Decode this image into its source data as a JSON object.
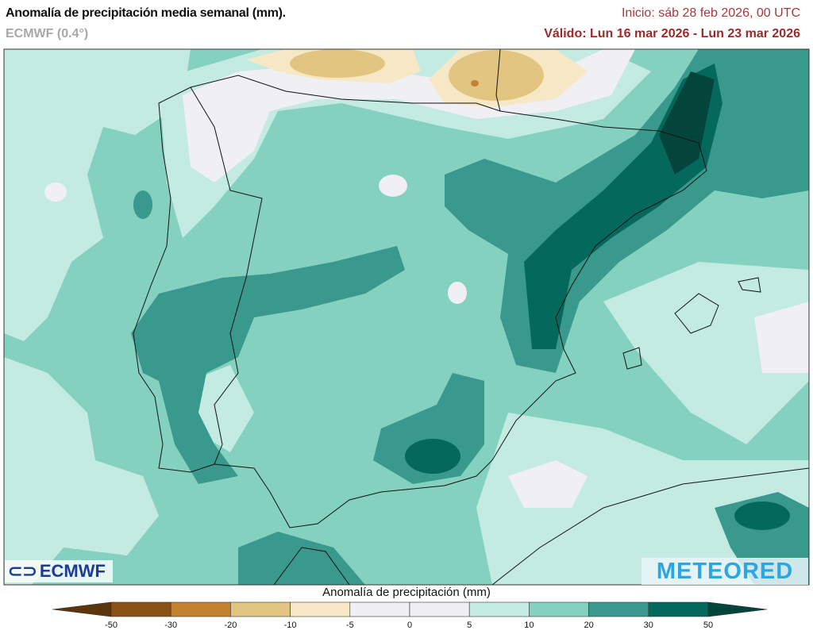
{
  "header": {
    "title": "Anomalía de precipitación media semanal (mm).",
    "model": "ECMWF (0.4°)",
    "init": "Inicio:  sáb 28 feb 2026, 00 UTC",
    "valid": "Válido: Lun 16 mar 2026 - Lun 23 mar 2026"
  },
  "logos": {
    "left": "ECMWF",
    "right": "METEORED"
  },
  "colorbar": {
    "label": "Anomalía de precipitación (mm)",
    "ticks": [
      "-50",
      "-30",
      "-20",
      "-10",
      "-5",
      "0",
      "5",
      "10",
      "20",
      "30",
      "50"
    ],
    "colors": [
      "#5b360c",
      "#8a5215",
      "#c2822f",
      "#e2c581",
      "#f6e8c5",
      "#efeff4",
      "#efeff4",
      "#c4ebe2",
      "#84d1c0",
      "#38998c",
      "#04695c",
      "#03453b"
    ]
  }
}
